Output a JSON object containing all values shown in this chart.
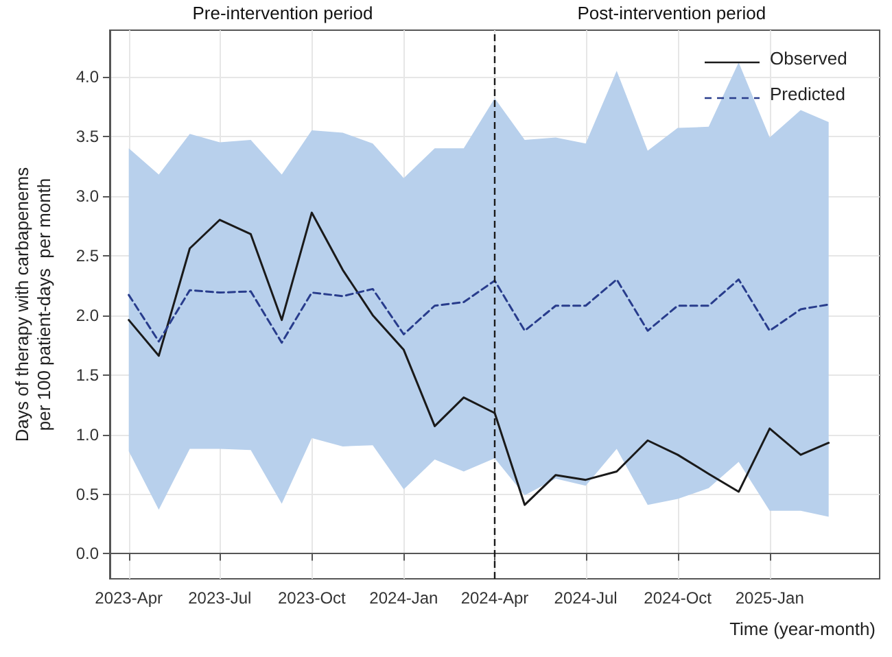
{
  "chart_data": {
    "type": "line",
    "xlabel": "Time (year-month)",
    "ylabel": "Days of therapy with carbapenems\nper 100 patient-days  per month",
    "annotations": [
      "Pre-intervention period",
      "Post-intervention period"
    ],
    "x": [
      "2023-04",
      "2023-05",
      "2023-06",
      "2023-07",
      "2023-08",
      "2023-09",
      "2023-10",
      "2023-11",
      "2023-12",
      "2024-01",
      "2024-02",
      "2024-03",
      "2024-04",
      "2024-05",
      "2024-06",
      "2024-07",
      "2024-08",
      "2024-09",
      "2024-10",
      "2024-11",
      "2024-12",
      "2025-01",
      "2025-02",
      "2025-03"
    ],
    "series": [
      {
        "name": "Observed",
        "color": "#1a1a1a",
        "line_style": "solid",
        "values": [
          1.96,
          1.66,
          2.56,
          2.8,
          2.68,
          1.96,
          2.86,
          2.38,
          2.0,
          1.71,
          1.07,
          1.31,
          1.18,
          0.41,
          0.66,
          0.62,
          0.69,
          0.95,
          0.83,
          0.67,
          0.52,
          1.05,
          0.83,
          0.93
        ]
      },
      {
        "name": "Predicted",
        "color": "#283c8c",
        "line_style": "dashed",
        "values": [
          2.17,
          1.78,
          2.21,
          2.19,
          2.2,
          1.77,
          2.19,
          2.16,
          2.22,
          1.84,
          2.08,
          2.11,
          2.29,
          1.87,
          2.08,
          2.08,
          2.3,
          1.87,
          2.08,
          2.08,
          2.3,
          1.87,
          2.05,
          2.09
        ],
        "lower": [
          0.86,
          0.37,
          0.88,
          0.88,
          0.87,
          0.42,
          0.97,
          0.9,
          0.91,
          0.54,
          0.79,
          0.69,
          0.8,
          0.49,
          0.63,
          0.57,
          0.88,
          0.41,
          0.46,
          0.55,
          0.77,
          0.36,
          0.36,
          0.31
        ],
        "upper": [
          3.4,
          3.18,
          3.52,
          3.45,
          3.47,
          3.18,
          3.55,
          3.53,
          3.44,
          3.15,
          3.4,
          3.4,
          3.82,
          3.47,
          3.49,
          3.44,
          4.05,
          3.38,
          3.57,
          3.58,
          4.12,
          3.49,
          3.72,
          3.62
        ]
      }
    ],
    "xlim": [
      "2023-03-13",
      "2025-04-21"
    ],
    "xticks": [
      {
        "value": "2023-04",
        "label": "2023-Apr"
      },
      {
        "value": "2023-07",
        "label": "2023-Jul"
      },
      {
        "value": "2023-10",
        "label": "2023-Oct"
      },
      {
        "value": "2024-01",
        "label": "2024-Jan"
      },
      {
        "value": "2024-04",
        "label": "2024-Apr"
      },
      {
        "value": "2024-07",
        "label": "2024-Jul"
      },
      {
        "value": "2024-10",
        "label": "2024-Oct"
      },
      {
        "value": "2025-01",
        "label": "2025-Jan"
      }
    ],
    "ylim": [
      -0.21,
      4.39
    ],
    "yticks": [
      {
        "value": 0,
        "label": "0.0"
      },
      {
        "value": 0.5,
        "label": "0.5"
      },
      {
        "value": 1,
        "label": "1.0"
      },
      {
        "value": 1.5,
        "label": "1.5"
      },
      {
        "value": 2,
        "label": "2.0"
      },
      {
        "value": 2.5,
        "label": "2.5"
      },
      {
        "value": 3,
        "label": "3.0"
      },
      {
        "value": 3.5,
        "label": "3.5"
      },
      {
        "value": 4,
        "label": "4.0"
      }
    ],
    "ref_lines": [
      {
        "axis": "x",
        "value": "2024-04",
        "color": "#1a1a1a",
        "line_style": "dashed"
      }
    ],
    "grid": true,
    "legend": "top right",
    "marker": "none"
  }
}
